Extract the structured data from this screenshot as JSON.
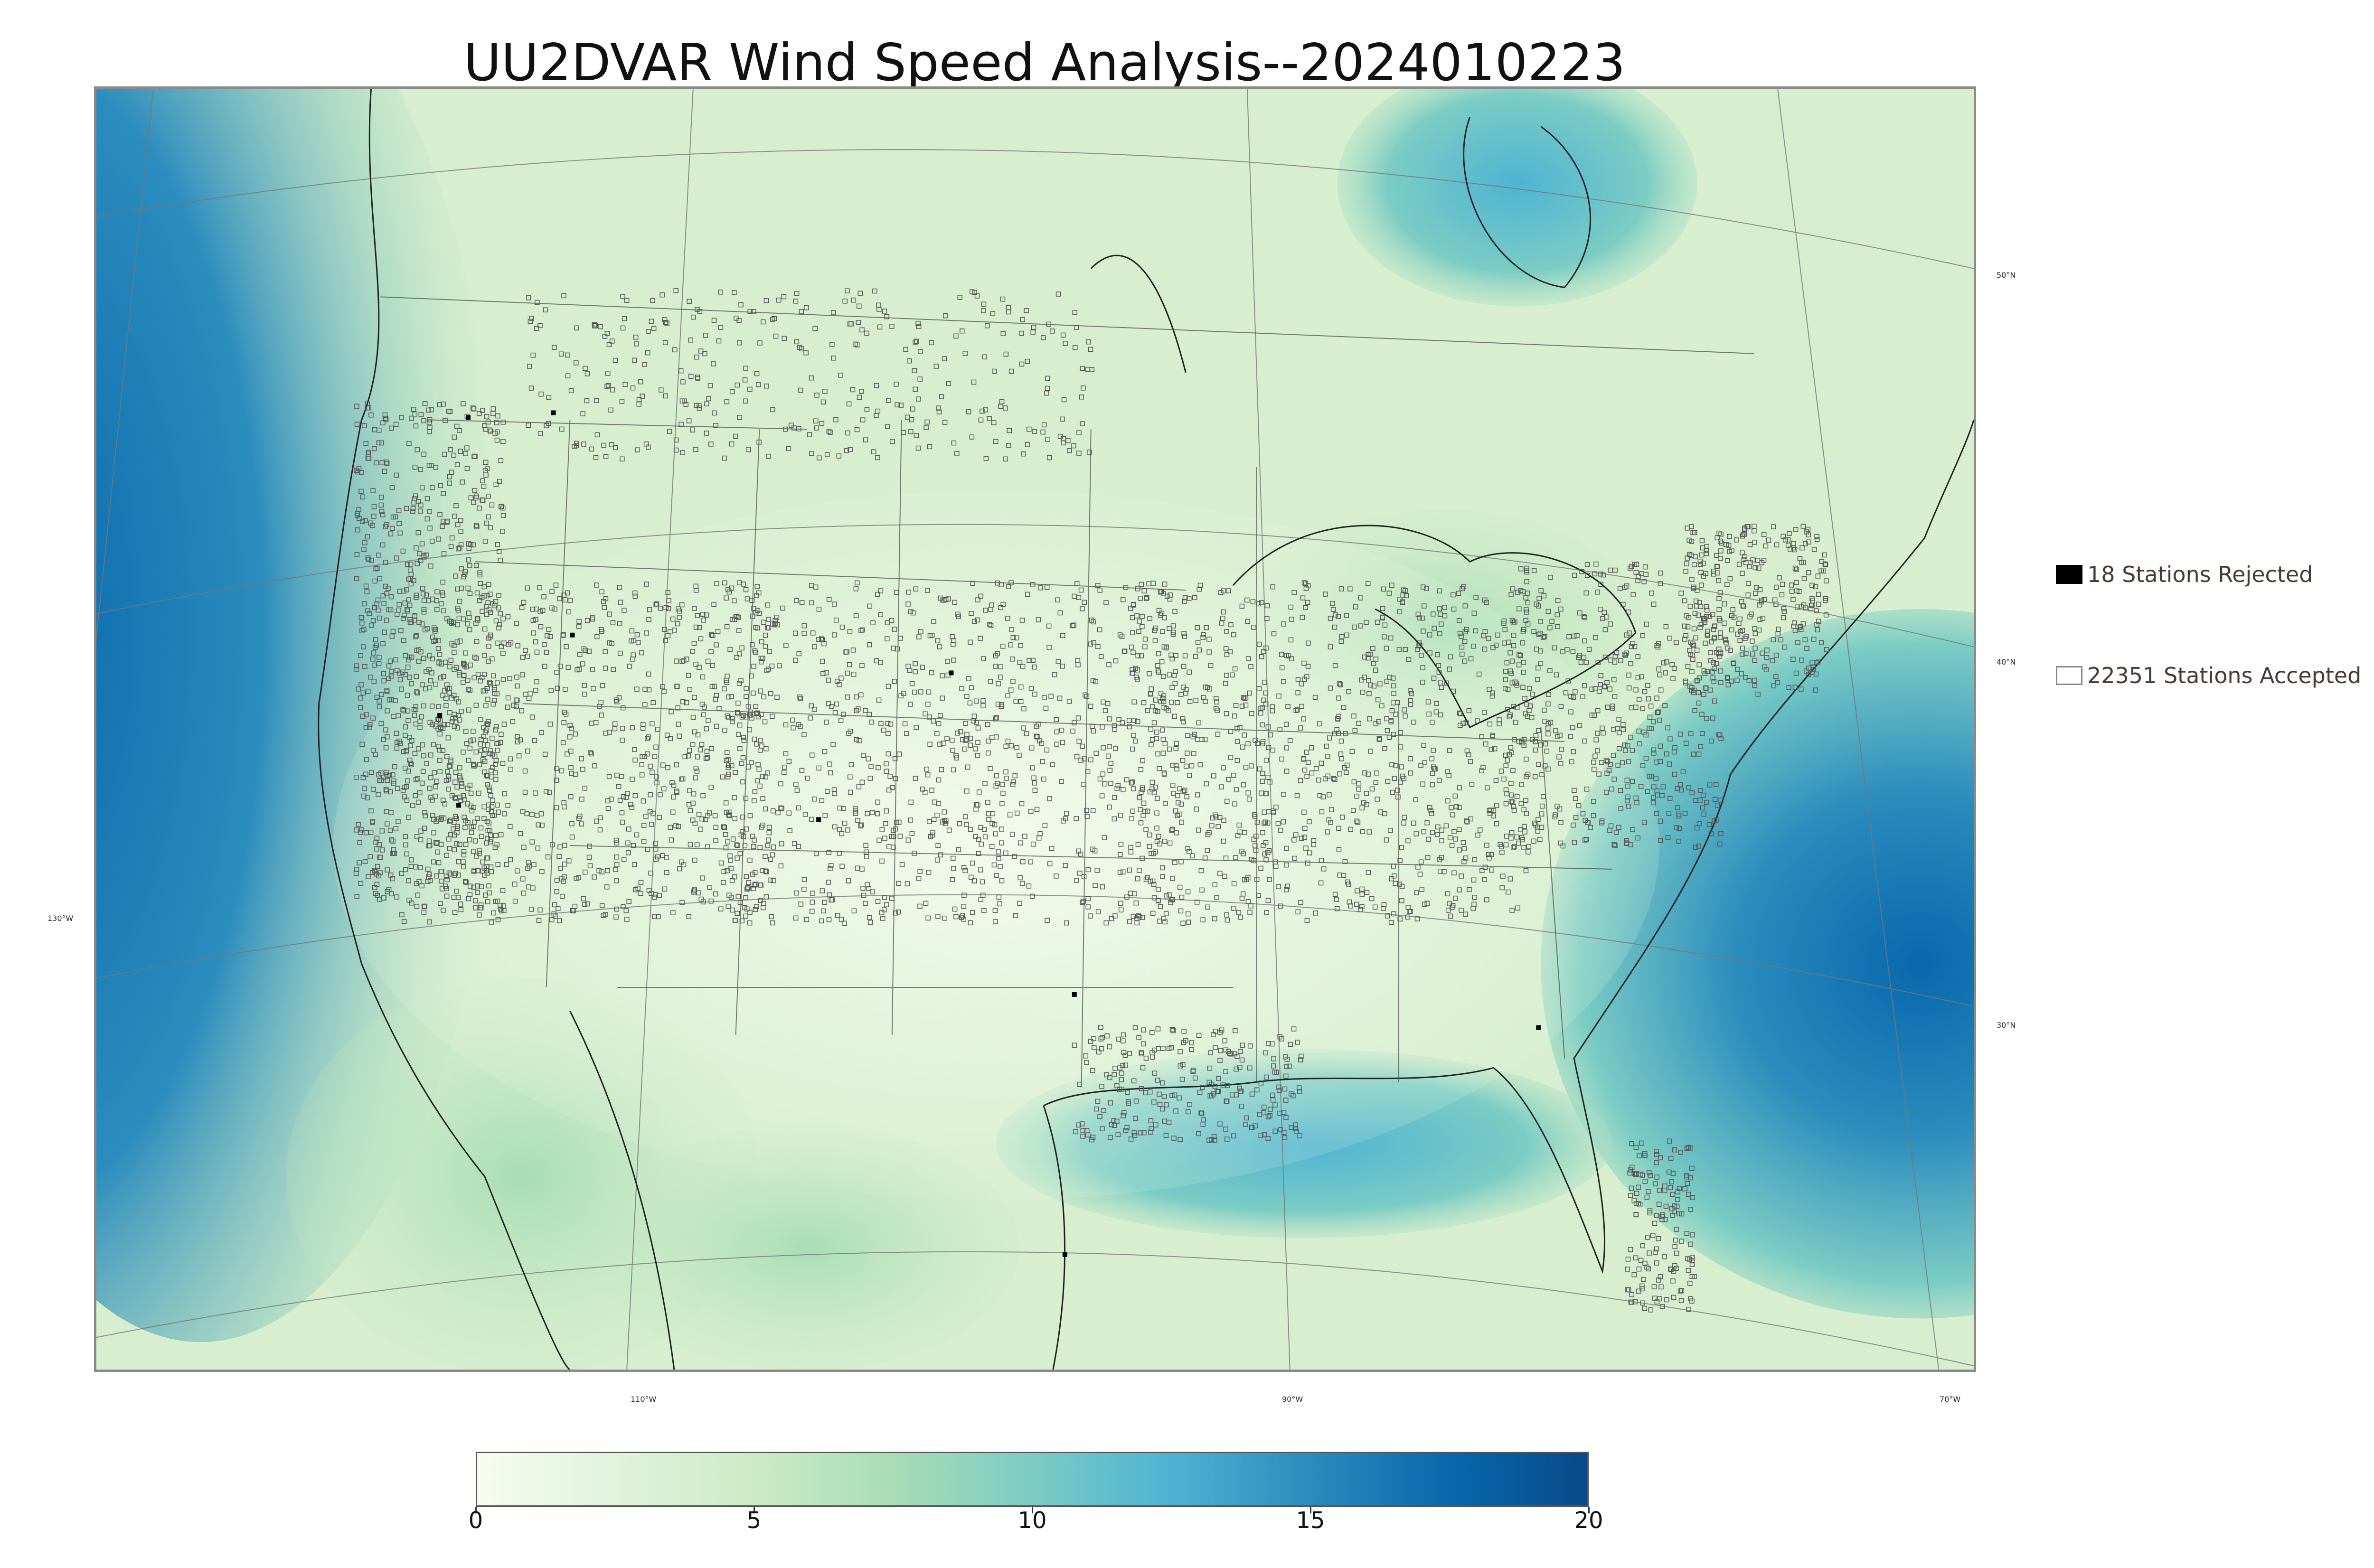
{
  "title": "UU2DVAR Wind Speed Analysis--2024010223",
  "map": {
    "longitude_labels": [
      "130°W",
      "110°W",
      "90°W",
      "70°W"
    ],
    "latitude_labels": [
      "50°N",
      "40°N",
      "30°N"
    ]
  },
  "legend": {
    "rejected": "18 Stations Rejected",
    "accepted": "22351 Stations Accepted"
  },
  "colorbar": {
    "min": 0,
    "max": 20,
    "ticks": [
      "0",
      "5",
      "10",
      "15",
      "20"
    ],
    "colors": [
      "#f7fcf0",
      "#e0f3db",
      "#ccebc5",
      "#a8ddb5",
      "#7bccc4",
      "#4eb3d3",
      "#2b8cbe",
      "#0868ac",
      "#084a8a"
    ]
  },
  "colors": {
    "frame": "#8a8a8a",
    "legend_text": "#4a3a34",
    "land_base": "#e6f5dc"
  }
}
